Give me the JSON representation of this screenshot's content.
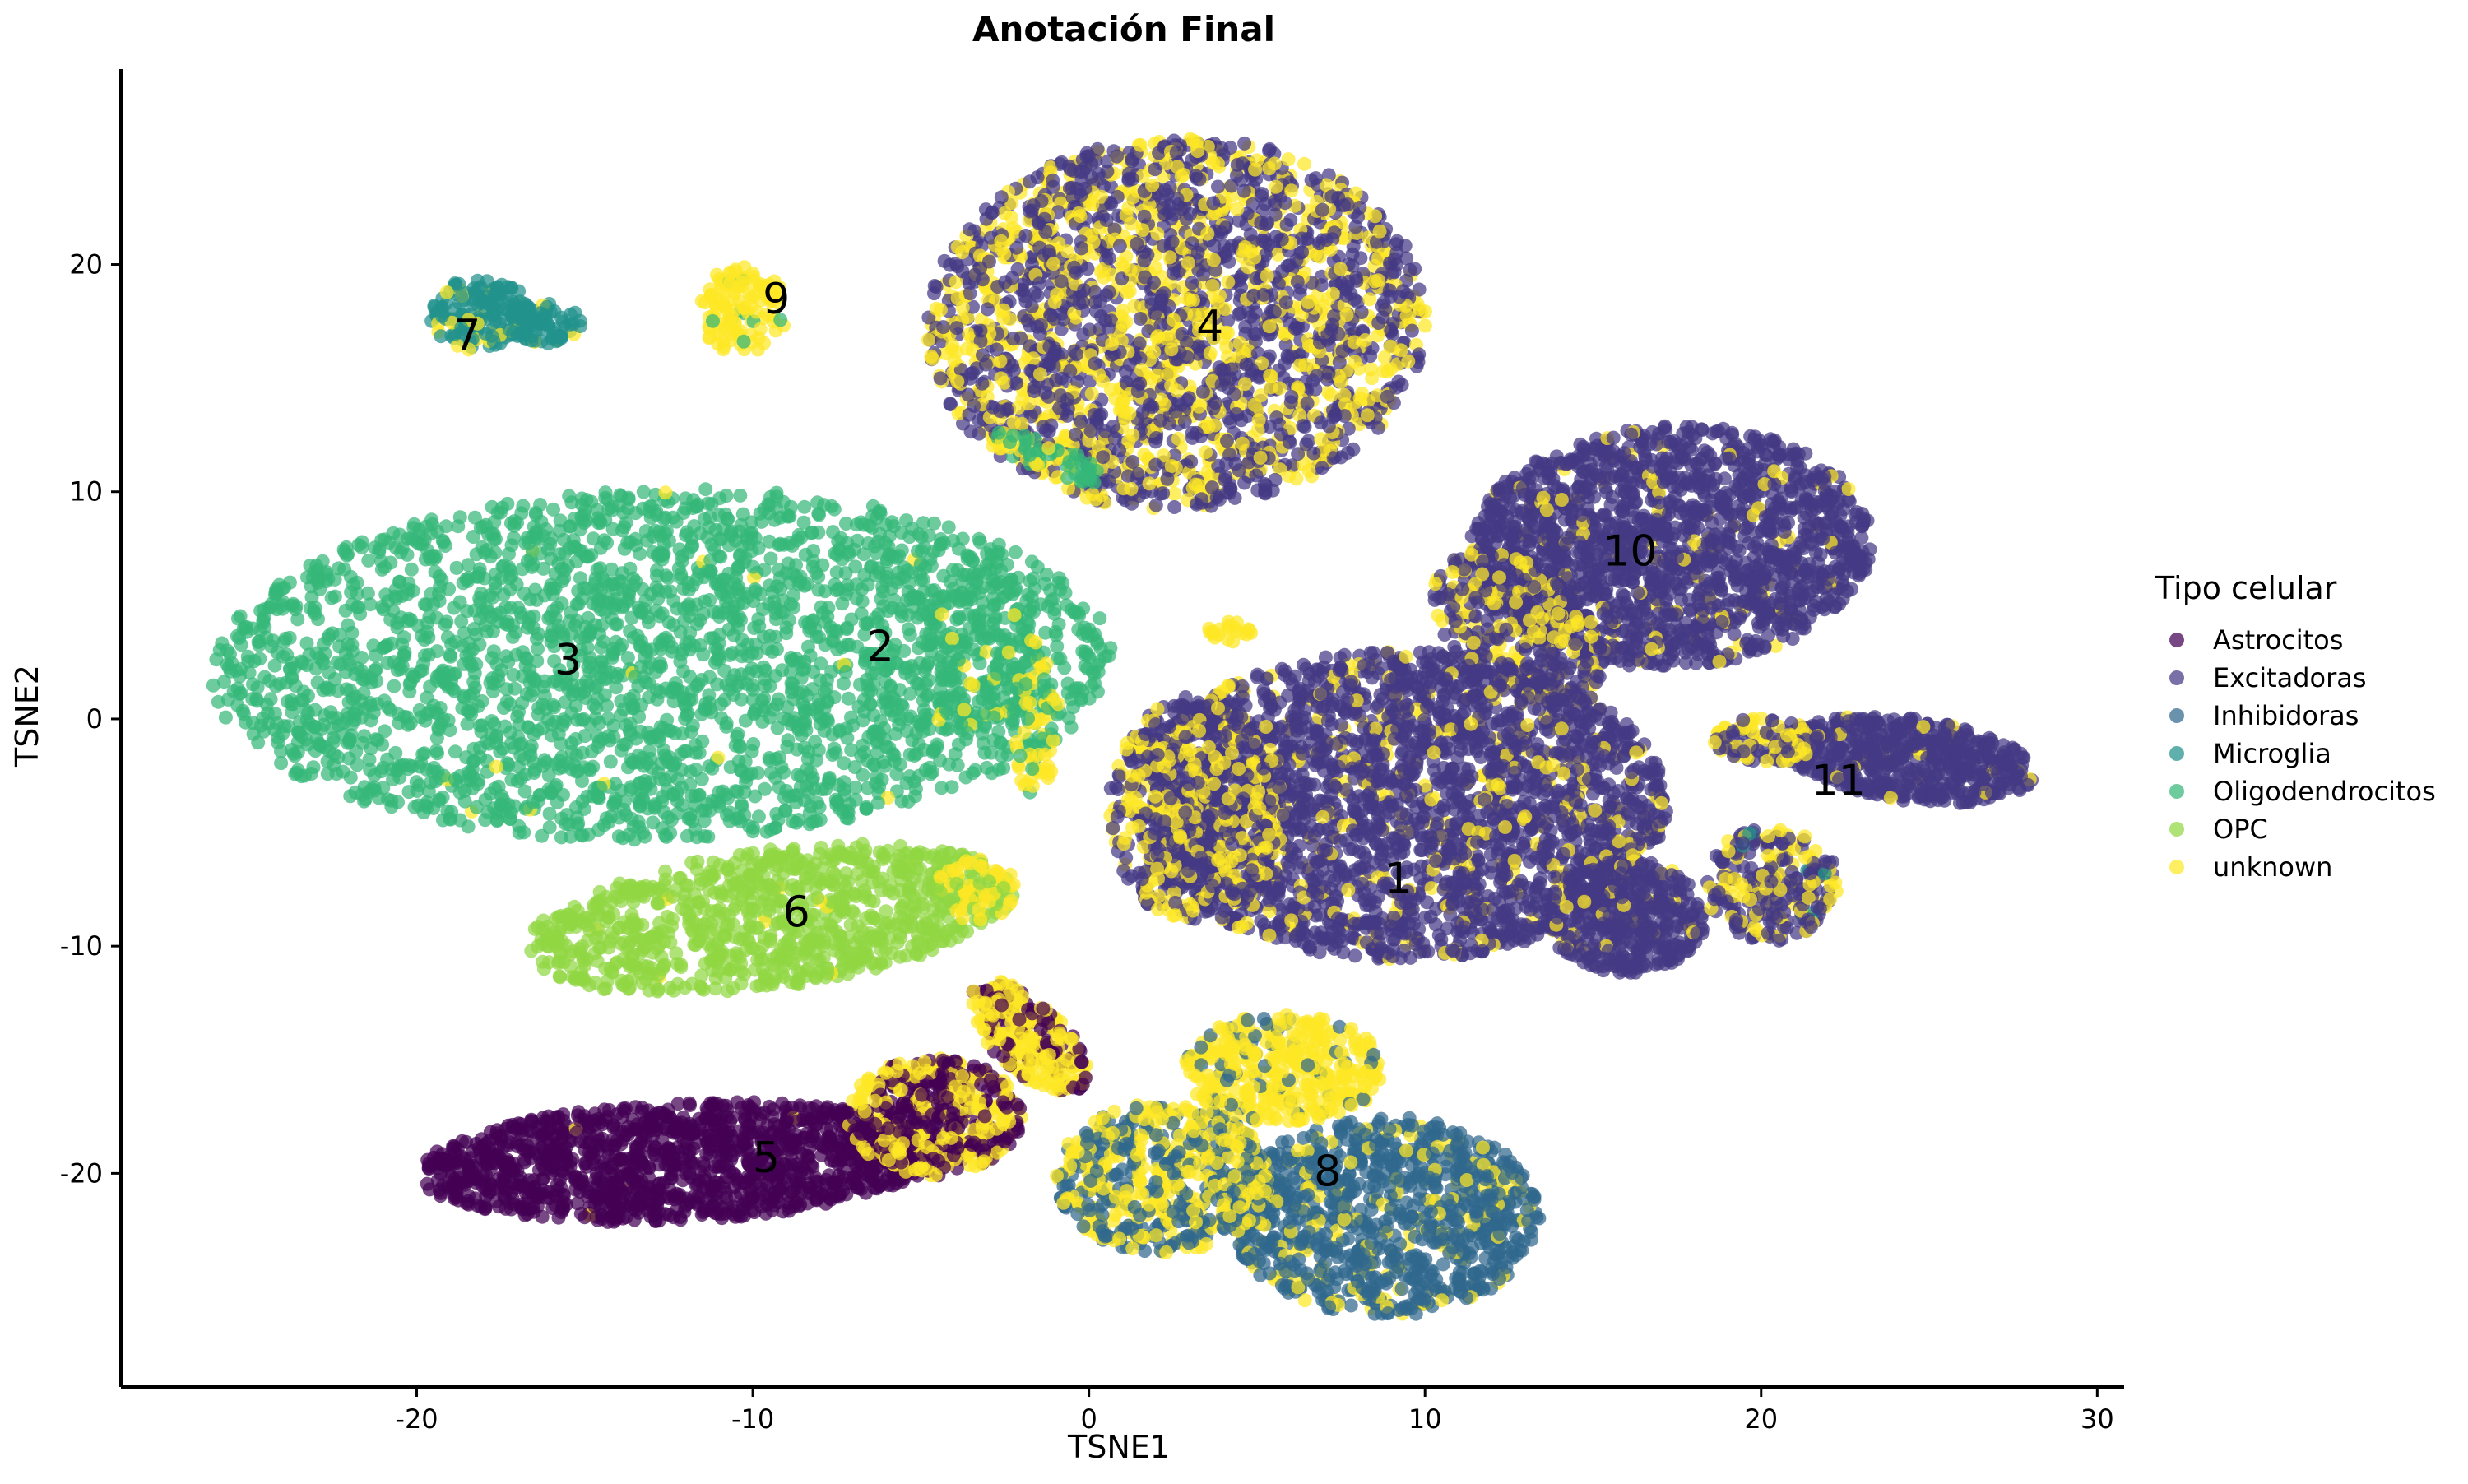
{
  "chart_data": {
    "type": "scatter",
    "title": "Anotación Final",
    "xlabel": "TSNE1",
    "ylabel": "TSNE2",
    "xlim": [
      -28.8,
      30.8
    ],
    "ylim": [
      -29.4,
      28.6
    ],
    "x_ticks": [
      -20,
      -10,
      0,
      10,
      20,
      30
    ],
    "y_ticks": [
      -20,
      -10,
      0,
      10,
      20
    ],
    "x_tick_labels": [
      "-20",
      "-10",
      "0",
      "10",
      "20",
      "30"
    ],
    "y_tick_labels": [
      "-20",
      "-10",
      "0",
      "10",
      "20"
    ],
    "grid": false,
    "legend": {
      "title": "Tipo celular",
      "position": "right",
      "entries": [
        "Astrocitos",
        "Excitadoras",
        "Inhibidoras",
        "Microglia",
        "Oligodendrocitos",
        "OPC",
        "unknown"
      ]
    },
    "series_colors": {
      "Astrocitos": "#440154",
      "Excitadoras": "#443983",
      "Inhibidoras": "#31688e",
      "Microglia": "#21918c",
      "Oligodendrocitos": "#35b779",
      "OPC": "#90d743",
      "unknown": "#fde725"
    },
    "clusters": [
      {
        "label": "1",
        "x": 9.2,
        "y": -7.0,
        "cell_type": "Excitadoras"
      },
      {
        "label": "2",
        "x": -6.2,
        "y": 3.2,
        "cell_type": "Oligodendrocitos"
      },
      {
        "label": "3",
        "x": -15.5,
        "y": 2.6,
        "cell_type": "Oligodendrocitos"
      },
      {
        "label": "4",
        "x": 3.6,
        "y": 17.3,
        "cell_type": "Excitadoras"
      },
      {
        "label": "5",
        "x": -9.6,
        "y": -19.3,
        "cell_type": "Astrocitos"
      },
      {
        "label": "6",
        "x": -8.7,
        "y": -8.5,
        "cell_type": "OPC"
      },
      {
        "label": "7",
        "x": -18.5,
        "y": 16.9,
        "cell_type": "Microglia"
      },
      {
        "label": "8",
        "x": 7.1,
        "y": -19.9,
        "cell_type": "Inhibidoras"
      },
      {
        "label": "9",
        "x": -9.3,
        "y": 18.5,
        "cell_type": "unknown"
      },
      {
        "label": "10",
        "x": 16.1,
        "y": 7.4,
        "cell_type": "Excitadoras"
      },
      {
        "label": "11",
        "x": 22.3,
        "y": -2.7,
        "cell_type": "Excitadoras"
      }
    ]
  }
}
